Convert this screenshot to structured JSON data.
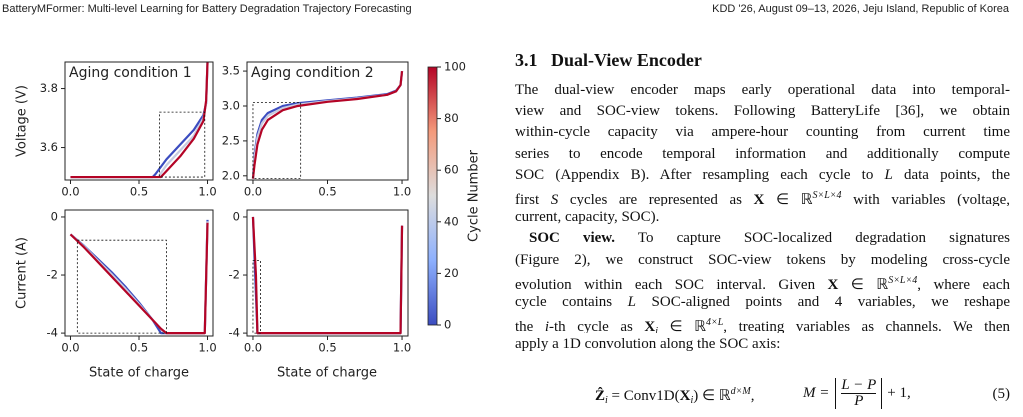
{
  "header": {
    "left": "BatteryMFormer: Multi-level Learning for Battery Degradation Trajectory Forecasting",
    "right": "KDD '26, August 09–13, 2026, Jeju Island, Republic of Korea"
  },
  "figure": {
    "x_label": "State of charge",
    "panels": [
      {
        "type": "line",
        "title": "Aging condition 1",
        "y_label": "Voltage (V)",
        "xlim": [
          -0.04,
          1.04
        ],
        "ylim": [
          3.49,
          3.89
        ],
        "xticks": [
          {
            "value": 0,
            "label": "0.0"
          },
          0.5,
          {
            "value": 1,
            "label": "1.0"
          }
        ],
        "yticks": [
          3.6,
          3.8
        ],
        "zoom_box": {
          "x": [
            0.65,
            0.98
          ],
          "y": [
            3.5,
            3.72
          ]
        },
        "series": [
          {
            "color": "#3b4cc0",
            "x": [
              0,
              0.1,
              0.3,
              0.5,
              0.6,
              0.62,
              0.7,
              0.8,
              0.9,
              0.97,
              0.99,
              1.0
            ],
            "y": [
              3.5,
              3.5,
              3.5,
              3.5,
              3.5,
              3.51,
              3.56,
              3.61,
              3.66,
              3.71,
              3.75,
              3.89
            ]
          },
          {
            "color": "#c7cbe0",
            "x": [
              0,
              0.1,
              0.3,
              0.5,
              0.6,
              0.64,
              0.7,
              0.8,
              0.9,
              0.97,
              0.99,
              1.0
            ],
            "y": [
              3.5,
              3.5,
              3.5,
              3.5,
              3.5,
              3.5,
              3.54,
              3.59,
              3.64,
              3.7,
              3.75,
              3.89
            ]
          },
          {
            "color": "#b40426",
            "x": [
              0,
              0.1,
              0.3,
              0.5,
              0.6,
              0.66,
              0.7,
              0.8,
              0.9,
              0.97,
              0.99,
              1.0
            ],
            "y": [
              3.5,
              3.5,
              3.5,
              3.5,
              3.5,
              3.5,
              3.52,
              3.57,
              3.63,
              3.69,
              3.76,
              3.89
            ]
          }
        ]
      },
      {
        "type": "line",
        "title": "Aging condition 2",
        "xlim": [
          -0.04,
          1.04
        ],
        "ylim": [
          1.94,
          3.63
        ],
        "xticks": [
          {
            "value": 0,
            "label": "0.0"
          },
          0.5,
          {
            "value": 1,
            "label": "1.0"
          }
        ],
        "yticks": [
          {
            "value": 2,
            "label": "2.0"
          },
          2.5,
          {
            "value": 3,
            "label": "3.0"
          },
          3.5
        ],
        "zoom_box": {
          "x": [
            0,
            0.32
          ],
          "y": [
            1.96,
            3.05
          ]
        },
        "series": [
          {
            "color": "#3b4cc0",
            "x": [
              0,
              0.01,
              0.03,
              0.06,
              0.1,
              0.2,
              0.3,
              0.5,
              0.7,
              0.9,
              0.96,
              0.99,
              1.0
            ],
            "y": [
              1.96,
              2.3,
              2.6,
              2.8,
              2.9,
              3.0,
              3.04,
              3.08,
              3.12,
              3.17,
              3.22,
              3.3,
              3.5
            ]
          },
          {
            "color": "#c7cbe0",
            "x": [
              0,
              0.01,
              0.03,
              0.06,
              0.1,
              0.2,
              0.3,
              0.5,
              0.7,
              0.9,
              0.96,
              0.99,
              1.0
            ],
            "y": [
              1.96,
              2.25,
              2.55,
              2.75,
              2.86,
              2.97,
              3.02,
              3.07,
              3.11,
              3.16,
              3.21,
              3.3,
              3.5
            ]
          },
          {
            "color": "#b40426",
            "x": [
              0,
              0.01,
              0.03,
              0.06,
              0.1,
              0.2,
              0.3,
              0.5,
              0.7,
              0.9,
              0.96,
              0.99,
              1.0
            ],
            "y": [
              1.96,
              2.15,
              2.45,
              2.66,
              2.8,
              2.94,
              3.0,
              3.06,
              3.1,
              3.16,
              3.21,
              3.3,
              3.5
            ]
          }
        ]
      },
      {
        "type": "line",
        "y_label": "Current (A)",
        "xlim": [
          -0.04,
          1.04
        ],
        "ylim": [
          -4.1,
          0.24
        ],
        "xticks": [
          {
            "value": 0,
            "label": "0.0"
          },
          0.5,
          {
            "value": 1,
            "label": "1.0"
          }
        ],
        "yticks": [
          0,
          -2,
          -4
        ],
        "zoom_box": {
          "x": [
            0.05,
            0.7
          ],
          "y": [
            -4,
            -0.8
          ]
        },
        "series": [
          {
            "color": "#3b4cc0",
            "x": [
              0,
              0.1,
              0.2,
              0.3,
              0.4,
              0.5,
              0.6,
              0.66,
              0.7,
              0.8,
              0.9,
              0.98,
              1.0
            ],
            "y": [
              -0.6,
              -1.0,
              -1.45,
              -1.9,
              -2.4,
              -2.95,
              -3.55,
              -4.0,
              -4.0,
              -4.0,
              -4.0,
              -4.0,
              -0.1
            ]
          },
          {
            "color": "#c7cbe0",
            "x": [
              0,
              0.1,
              0.2,
              0.3,
              0.4,
              0.5,
              0.6,
              0.68,
              0.7,
              0.8,
              0.9,
              0.98,
              1.0
            ],
            "y": [
              -0.6,
              -1.02,
              -1.5,
              -1.97,
              -2.47,
              -3.0,
              -3.55,
              -3.95,
              -4.0,
              -4.0,
              -4.0,
              -4.0,
              -0.15
            ]
          },
          {
            "color": "#b40426",
            "x": [
              0,
              0.1,
              0.2,
              0.3,
              0.4,
              0.5,
              0.6,
              0.66,
              0.7,
              0.8,
              0.9,
              0.98,
              1.0
            ],
            "y": [
              -0.6,
              -1.05,
              -1.55,
              -2.05,
              -2.55,
              -3.05,
              -3.55,
              -3.85,
              -4.0,
              -4.0,
              -4.0,
              -4.0,
              -0.2
            ]
          }
        ]
      },
      {
        "type": "line",
        "xlim": [
          -0.04,
          1.04
        ],
        "ylim": [
          -4.1,
          0.24
        ],
        "xticks": [
          {
            "value": 0,
            "label": "0.0"
          },
          0.5,
          {
            "value": 1,
            "label": "1.0"
          }
        ],
        "yticks": [
          0,
          -2,
          -4
        ],
        "zoom_box": {
          "x": [
            0,
            0.05
          ],
          "y": [
            -4,
            -1.5
          ]
        },
        "series": [
          {
            "color": "#3b4cc0",
            "x": [
              0,
              0.015,
              0.03,
              0.05,
              0.5,
              0.98,
              0.99,
              1.0
            ],
            "y": [
              0,
              -2,
              -4,
              -4,
              -4,
              -4,
              -4,
              -0.3
            ]
          },
          {
            "color": "#b40426",
            "x": [
              0,
              0.02,
              0.03,
              0.05,
              0.5,
              0.98,
              0.99,
              1.0
            ],
            "y": [
              0,
              -2,
              -4,
              -4,
              -4,
              -4,
              -4,
              -0.3
            ]
          }
        ]
      }
    ],
    "colorbar": {
      "label": "Cycle Number",
      "range": [
        0,
        100
      ],
      "ticks": [
        0,
        20,
        40,
        60,
        80,
        100
      ]
    }
  },
  "section": {
    "number": "3.1",
    "title": "Dual-View Encoder",
    "paragraphs": [
      {
        "lines": [
          [
            {
              "t": "The dual-view encoder maps early operational data into temporal-"
            }
          ],
          [
            {
              "t": "view and SOC-view tokens. Following BatteryLife [36], we obtain"
            }
          ],
          [
            {
              "t": "within-cycle capacity via ampere-hour counting from current time"
            }
          ],
          [
            {
              "t": "series to encode temporal information and additionally compute"
            }
          ],
          [
            {
              "t": "SOC (Appendix B). After resampling each cycle to "
            },
            {
              "t": "L",
              "s": "i"
            },
            {
              "t": " data points, the"
            }
          ],
          [
            {
              "t": "first "
            },
            {
              "t": "S",
              "s": "i"
            },
            {
              "t": " cycles are represented as "
            },
            {
              "t": "X",
              "s": "b"
            },
            {
              "t": " ∈ ℝ"
            },
            {
              "t": "S×L×4",
              "s": "sup"
            },
            {
              "t": " with variables (voltage,"
            }
          ],
          [
            {
              "t": "current, capacity, SOC)."
            }
          ]
        ]
      },
      {
        "lines": [
          [
            {
              "t": "SOC view.",
              "s": "b"
            },
            {
              "t": " To capture SOC-localized degradation signatures"
            }
          ],
          [
            {
              "t": "(Figure 2), we construct SOC-view tokens by modeling cross-cycle"
            }
          ],
          [
            {
              "t": "evolution within each SOC interval. Given "
            },
            {
              "t": "X",
              "s": "b"
            },
            {
              "t": " ∈ ℝ"
            },
            {
              "t": "S×L×4",
              "s": "sup"
            },
            {
              "t": ", where each"
            }
          ],
          [
            {
              "t": "cycle contains "
            },
            {
              "t": "L",
              "s": "i"
            },
            {
              "t": " SOC-aligned points and 4 variables, we reshape"
            }
          ],
          [
            {
              "t": "the "
            },
            {
              "t": "i",
              "s": "i"
            },
            {
              "t": "-th cycle as "
            },
            {
              "t": "X",
              "s": "b"
            },
            {
              "t": "i",
              "s": "sub"
            },
            {
              "t": " ∈ ℝ"
            },
            {
              "t": "4×L",
              "s": "sup"
            },
            {
              "t": ", treating variables as channels. We then"
            }
          ],
          [
            {
              "t": "apply a 1D convolution along the SOC axis:"
            }
          ]
        ]
      }
    ],
    "equation": {
      "lhs": [
        {
          "t": "Ẑ",
          "s": "b"
        },
        {
          "t": "i",
          "s": "sub"
        },
        {
          "t": " = Conv1D("
        },
        {
          "t": "X",
          "s": "b"
        },
        {
          "t": "i",
          "s": "sub"
        },
        {
          "t": ") ∈ ℝ"
        },
        {
          "t": "d×M",
          "s": "sup"
        },
        {
          "t": ","
        }
      ],
      "m": "M =",
      "numerator": "L − P",
      "denominator": "P",
      "tail": "+ 1,",
      "tag": "(5)"
    }
  }
}
